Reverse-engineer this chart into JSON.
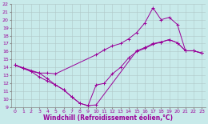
{
  "bg_color": "#c8eaea",
  "line_color": "#990099",
  "grid_color": "#b0c8c8",
  "xlabel": "Windchill (Refroidissement éolien,°C)",
  "xlabel_color": "#990099",
  "xlim": [
    -0.5,
    23.5
  ],
  "ylim": [
    9,
    22
  ],
  "xticks": [
    0,
    1,
    2,
    3,
    4,
    5,
    6,
    7,
    8,
    9,
    10,
    11,
    12,
    13,
    14,
    15,
    16,
    17,
    18,
    19,
    20,
    21,
    22,
    23
  ],
  "yticks": [
    9,
    10,
    11,
    12,
    13,
    14,
    15,
    16,
    17,
    18,
    19,
    20,
    21,
    22
  ],
  "line1_x": [
    0,
    1,
    2,
    3,
    4,
    5,
    10,
    11,
    12,
    13,
    14,
    15,
    16,
    17,
    18,
    19,
    20,
    21,
    22,
    23
  ],
  "line1_y": [
    14.3,
    13.9,
    13.5,
    13.3,
    13.3,
    13.2,
    15.6,
    16.2,
    16.7,
    17.0,
    17.6,
    18.4,
    19.6,
    21.5,
    20.0,
    20.3,
    19.4,
    16.1,
    16.1,
    15.8
  ],
  "line2_x": [
    0,
    1,
    2,
    3,
    4,
    5,
    6,
    7,
    8,
    9,
    10,
    15,
    16,
    17,
    18,
    19,
    20,
    21,
    22,
    23
  ],
  "line2_y": [
    14.3,
    13.9,
    13.5,
    12.8,
    12.3,
    11.8,
    11.2,
    10.3,
    9.5,
    9.2,
    9.3,
    16.1,
    16.5,
    17.0,
    17.2,
    17.5,
    17.1,
    16.1,
    16.1,
    15.8
  ],
  "line3_x": [
    0,
    3,
    4,
    5,
    6,
    7,
    8,
    9,
    10,
    11,
    12,
    13,
    14,
    15,
    16,
    17,
    18,
    19,
    20,
    21,
    22,
    23
  ],
  "line3_y": [
    14.3,
    13.3,
    12.6,
    11.8,
    11.2,
    10.3,
    9.5,
    9.2,
    11.8,
    12.0,
    13.2,
    14.0,
    15.2,
    16.0,
    16.4,
    16.9,
    17.2,
    17.5,
    17.1,
    16.1,
    16.1,
    15.8
  ]
}
